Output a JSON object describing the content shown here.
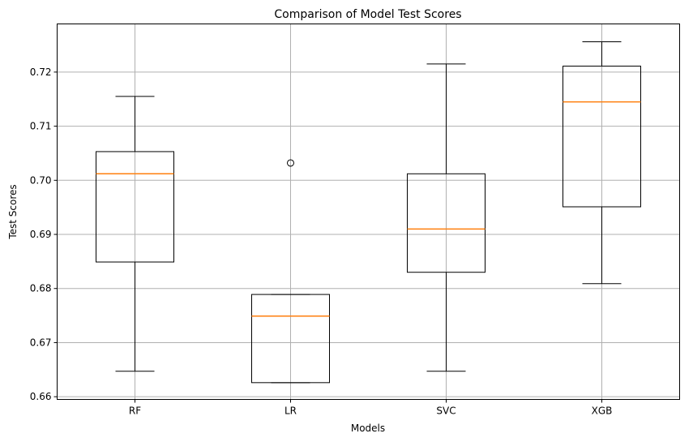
{
  "chart_data": {
    "type": "box",
    "title": "Comparison of Model Test Scores",
    "xlabel": "Models",
    "ylabel": "Test Scores",
    "categories": [
      "RF",
      "LR",
      "SVC",
      "XGB"
    ],
    "ylim": [
      0.6595,
      0.7289
    ],
    "yticks": [
      0.66,
      0.67,
      0.68,
      0.69,
      0.7,
      0.71,
      0.72
    ],
    "ytick_labels": [
      "0.66",
      "0.67",
      "0.68",
      "0.69",
      "0.70",
      "0.71",
      "0.72"
    ],
    "grid": true,
    "box_color": "#000000",
    "median_color": "#ff7f0e",
    "grid_color": "#b0b0b0",
    "boxes": [
      {
        "name": "RF",
        "whisker_low": 0.6647,
        "q1": 0.6849,
        "median": 0.7012,
        "q3": 0.7053,
        "whisker_high": 0.7155,
        "outliers": []
      },
      {
        "name": "LR",
        "whisker_low": 0.6626,
        "q1": 0.6626,
        "median": 0.6749,
        "q3": 0.6789,
        "whisker_high": 0.6789,
        "outliers": [
          0.7032
        ]
      },
      {
        "name": "SVC",
        "whisker_low": 0.6647,
        "q1": 0.683,
        "median": 0.691,
        "q3": 0.7012,
        "whisker_high": 0.7215,
        "outliers": []
      },
      {
        "name": "XGB",
        "whisker_low": 0.6809,
        "q1": 0.6951,
        "median": 0.7145,
        "q3": 0.7211,
        "whisker_high": 0.7256,
        "outliers": []
      }
    ]
  }
}
